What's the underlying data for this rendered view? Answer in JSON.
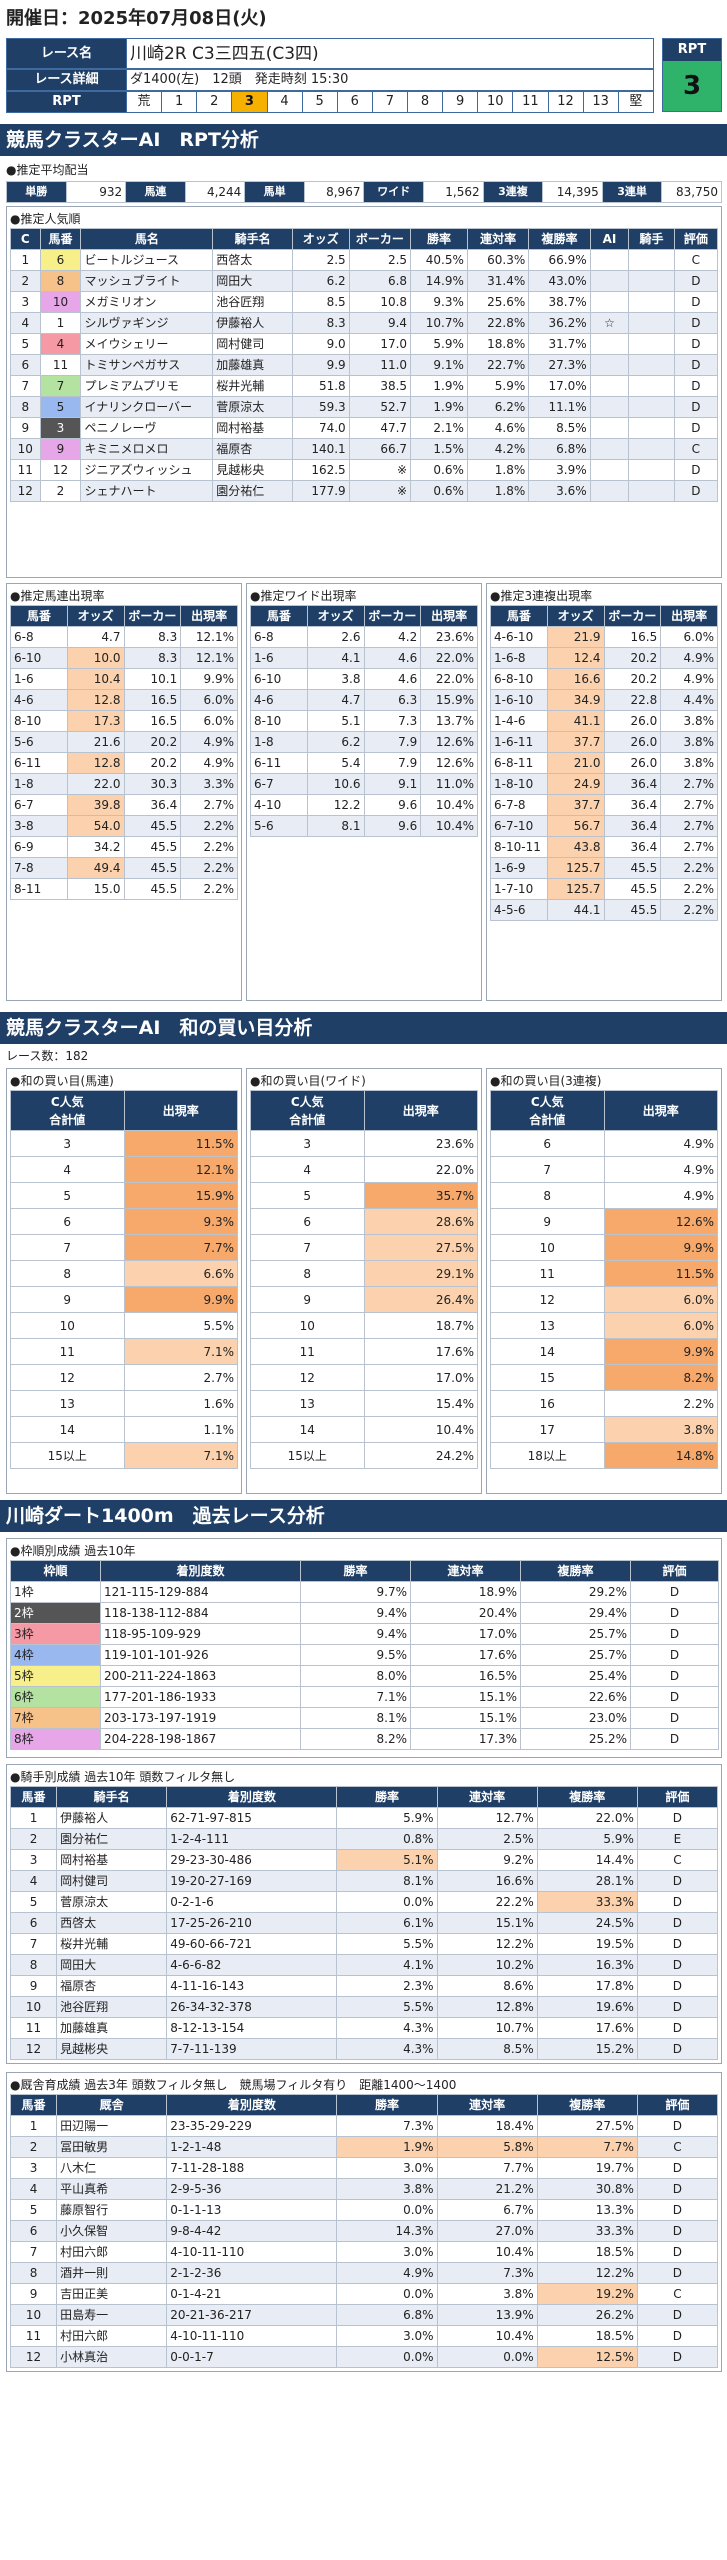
{
  "header": {
    "date_label": "開催日：2025年07月08日(火)"
  },
  "race": {
    "name_label": "レース名",
    "name": "川崎2R C3三四五(C3四)",
    "detail_label": "レース詳細",
    "detail": "ダ1400(左)　12頭　発走時刻 15:30",
    "rpt_label": "RPT",
    "rpt_scale_left": "荒",
    "rpt_scale_right": "堅",
    "rpt_values": [
      "1",
      "2",
      "3",
      "4",
      "5",
      "6",
      "7",
      "8",
      "9",
      "10",
      "11",
      "12",
      "13"
    ],
    "rpt_selected": "3",
    "rpt_badge_label": "RPT",
    "rpt_badge_value": "3"
  },
  "s1": {
    "title": "競馬クラスターAI　RPT分析",
    "avg_title": "●推定平均配当",
    "avg": [
      {
        "l": "単勝",
        "v": "932"
      },
      {
        "l": "馬連",
        "v": "4,244"
      },
      {
        "l": "馬単",
        "v": "8,967"
      },
      {
        "l": "ワイド",
        "v": "1,562"
      },
      {
        "l": "3連複",
        "v": "14,395"
      },
      {
        "l": "3連単",
        "v": "83,750"
      }
    ],
    "pop_title": "●推定人気順",
    "pop_headers": [
      "C",
      "馬番",
      "馬名",
      "騎手名",
      "オッズ",
      "ボーカー",
      "勝率",
      "連対率",
      "複勝率",
      "AI",
      "騎手",
      "評価"
    ],
    "pop_rows": [
      [
        "1",
        "6",
        "ビートルジュース",
        "西啓太",
        "2.5",
        "2.5",
        "40.5%",
        "60.3%",
        "66.9%",
        "",
        "",
        "C"
      ],
      [
        "2",
        "8",
        "マッシュブライト",
        "岡田大",
        "6.2",
        "6.8",
        "14.9%",
        "31.4%",
        "43.0%",
        "",
        "",
        "D"
      ],
      [
        "3",
        "10",
        "メガミリオン",
        "池谷匠翔",
        "8.5",
        "10.8",
        "9.3%",
        "25.6%",
        "38.7%",
        "",
        "",
        "D"
      ],
      [
        "4",
        "1",
        "シルヴァギンジ",
        "伊藤裕人",
        "8.3",
        "9.4",
        "10.7%",
        "22.8%",
        "36.2%",
        "☆",
        "",
        "D"
      ],
      [
        "5",
        "4",
        "メイウシェリー",
        "岡村健司",
        "9.0",
        "17.0",
        "5.9%",
        "18.8%",
        "31.7%",
        "",
        "",
        "D"
      ],
      [
        "6",
        "11",
        "トミサンペガサス",
        "加藤雄真",
        "9.9",
        "11.0",
        "9.1%",
        "22.7%",
        "27.3%",
        "",
        "",
        "D"
      ],
      [
        "7",
        "7",
        "プレミアムプリモ",
        "桜井光輔",
        "51.8",
        "38.5",
        "1.9%",
        "5.9%",
        "17.0%",
        "",
        "",
        "D"
      ],
      [
        "8",
        "5",
        "イナリンクローバー",
        "菅原涼太",
        "59.3",
        "52.7",
        "1.9%",
        "6.2%",
        "11.1%",
        "",
        "",
        "D"
      ],
      [
        "9",
        "3",
        "ペニノレーヴ",
        "岡村裕基",
        "74.0",
        "47.7",
        "2.1%",
        "4.6%",
        "8.5%",
        "",
        "",
        "D"
      ],
      [
        "10",
        "9",
        "キミニメロメロ",
        "福原杏",
        "140.1",
        "66.7",
        "1.5%",
        "4.2%",
        "6.8%",
        "",
        "",
        "C"
      ],
      [
        "11",
        "12",
        "ジニアズウィッシュ",
        "見越彬央",
        "162.5",
        "※",
        "0.6%",
        "1.8%",
        "3.9%",
        "",
        "",
        "D"
      ],
      [
        "12",
        "2",
        "シェナハート",
        "園分祐仁",
        "177.9",
        "※",
        "0.6%",
        "1.8%",
        "3.6%",
        "",
        "",
        "D"
      ]
    ],
    "umaren_title": "●推定馬連出現率",
    "umaren_headers": [
      "馬番",
      "オッズ",
      "ボーカー",
      "出現率"
    ],
    "umaren_rows": [
      [
        "6-8",
        "4.7",
        "8.3",
        "12.1%"
      ],
      [
        "6-10",
        "10.0",
        "8.3",
        "12.1%"
      ],
      [
        "1-6",
        "10.4",
        "10.1",
        "9.9%"
      ],
      [
        "4-6",
        "12.8",
        "16.5",
        "6.0%"
      ],
      [
        "8-10",
        "17.3",
        "16.5",
        "6.0%"
      ],
      [
        "5-6",
        "21.6",
        "20.2",
        "4.9%"
      ],
      [
        "6-11",
        "12.8",
        "20.2",
        "4.9%"
      ],
      [
        "1-8",
        "22.0",
        "30.3",
        "3.3%"
      ],
      [
        "6-7",
        "39.8",
        "36.4",
        "2.7%"
      ],
      [
        "3-8",
        "54.0",
        "45.5",
        "2.2%"
      ],
      [
        "6-9",
        "34.2",
        "45.5",
        "2.2%"
      ],
      [
        "7-8",
        "49.4",
        "45.5",
        "2.2%"
      ],
      [
        "8-11",
        "15.0",
        "45.5",
        "2.2%"
      ]
    ],
    "wide_title": "●推定ワイド出現率",
    "wide_headers": [
      "馬番",
      "オッズ",
      "ボーカー",
      "出現率"
    ],
    "wide_rows": [
      [
        "6-8",
        "2.6",
        "4.2",
        "23.6%"
      ],
      [
        "1-6",
        "4.1",
        "4.6",
        "22.0%"
      ],
      [
        "6-10",
        "3.8",
        "4.6",
        "22.0%"
      ],
      [
        "4-6",
        "4.7",
        "6.3",
        "15.9%"
      ],
      [
        "8-10",
        "5.1",
        "7.3",
        "13.7%"
      ],
      [
        "1-8",
        "6.2",
        "7.9",
        "12.6%"
      ],
      [
        "6-11",
        "5.4",
        "7.9",
        "12.6%"
      ],
      [
        "6-7",
        "10.6",
        "9.1",
        "11.0%"
      ],
      [
        "4-10",
        "12.2",
        "9.6",
        "10.4%"
      ],
      [
        "5-6",
        "8.1",
        "9.6",
        "10.4%"
      ]
    ],
    "trio_title": "●推定3連複出現率",
    "trio_headers": [
      "馬番",
      "オッズ",
      "ボーカー",
      "出現率"
    ],
    "trio_rows": [
      [
        "4-6-10",
        "21.9",
        "16.5",
        "6.0%"
      ],
      [
        "1-6-8",
        "12.4",
        "20.2",
        "4.9%"
      ],
      [
        "6-8-10",
        "16.6",
        "20.2",
        "4.9%"
      ],
      [
        "1-6-10",
        "34.9",
        "22.8",
        "4.4%"
      ],
      [
        "1-4-6",
        "41.1",
        "26.0",
        "3.8%"
      ],
      [
        "1-6-11",
        "37.7",
        "26.0",
        "3.8%"
      ],
      [
        "6-8-11",
        "21.0",
        "26.0",
        "3.8%"
      ],
      [
        "1-8-10",
        "24.9",
        "36.4",
        "2.7%"
      ],
      [
        "6-7-8",
        "37.7",
        "36.4",
        "2.7%"
      ],
      [
        "6-7-10",
        "56.7",
        "36.4",
        "2.7%"
      ],
      [
        "8-10-11",
        "43.8",
        "36.4",
        "2.7%"
      ],
      [
        "1-6-9",
        "125.7",
        "45.5",
        "2.2%"
      ],
      [
        "1-7-10",
        "125.7",
        "45.5",
        "2.2%"
      ],
      [
        "4-5-6",
        "44.1",
        "45.5",
        "2.2%"
      ]
    ]
  },
  "s2": {
    "title": "競馬クラスターAI　和の買い目分析",
    "race_count": "レース数：182",
    "p1_title": "●和の買い目(馬連)",
    "p2_title": "●和の買い目(ワイド)",
    "p3_title": "●和の買い目(3連複)",
    "col1": "C人気",
    "col1b": "合計値",
    "col2": "出現率",
    "umaren": [
      [
        "3",
        "11.5%"
      ],
      [
        "4",
        "12.1%"
      ],
      [
        "5",
        "15.9%"
      ],
      [
        "6",
        "9.3%"
      ],
      [
        "7",
        "7.7%"
      ],
      [
        "8",
        "6.6%"
      ],
      [
        "9",
        "9.9%"
      ],
      [
        "10",
        "5.5%"
      ],
      [
        "11",
        "7.1%"
      ],
      [
        "12",
        "2.7%"
      ],
      [
        "13",
        "1.6%"
      ],
      [
        "14",
        "1.1%"
      ],
      [
        "15以上",
        "7.1%"
      ]
    ],
    "wide": [
      [
        "3",
        "23.6%"
      ],
      [
        "4",
        "22.0%"
      ],
      [
        "5",
        "35.7%"
      ],
      [
        "6",
        "28.6%"
      ],
      [
        "7",
        "27.5%"
      ],
      [
        "8",
        "29.1%"
      ],
      [
        "9",
        "26.4%"
      ],
      [
        "10",
        "18.7%"
      ],
      [
        "11",
        "17.6%"
      ],
      [
        "12",
        "17.0%"
      ],
      [
        "13",
        "15.4%"
      ],
      [
        "14",
        "10.4%"
      ],
      [
        "15以上",
        "24.2%"
      ]
    ],
    "trio": [
      [
        "6",
        "4.9%"
      ],
      [
        "7",
        "4.9%"
      ],
      [
        "8",
        "4.9%"
      ],
      [
        "9",
        "12.6%"
      ],
      [
        "10",
        "9.9%"
      ],
      [
        "11",
        "11.5%"
      ],
      [
        "12",
        "6.0%"
      ],
      [
        "13",
        "6.0%"
      ],
      [
        "14",
        "9.9%"
      ],
      [
        "15",
        "8.2%"
      ],
      [
        "16",
        "2.2%"
      ],
      [
        "17",
        "3.8%"
      ],
      [
        "18以上",
        "14.8%"
      ]
    ]
  },
  "s3": {
    "title": "川崎ダート1400m　過去レース分析",
    "waku_title": "●枠順別成績 過去10年",
    "waku_headers": [
      "枠順",
      "着別度数",
      "勝率",
      "連対率",
      "複勝率",
      "評価"
    ],
    "waku_rows": [
      [
        "1枠",
        "121-115-129-884",
        "9.7%",
        "18.9%",
        "29.2%",
        "D"
      ],
      [
        "2枠",
        "118-138-112-884",
        "9.4%",
        "20.4%",
        "29.4%",
        "D"
      ],
      [
        "3枠",
        "118-95-109-929",
        "9.4%",
        "17.0%",
        "25.7%",
        "D"
      ],
      [
        "4枠",
        "119-101-101-926",
        "9.5%",
        "17.6%",
        "25.7%",
        "D"
      ],
      [
        "5枠",
        "200-211-224-1863",
        "8.0%",
        "16.5%",
        "25.4%",
        "D"
      ],
      [
        "6枠",
        "177-201-186-1933",
        "7.1%",
        "15.1%",
        "22.6%",
        "D"
      ],
      [
        "7枠",
        "203-173-197-1919",
        "8.1%",
        "15.1%",
        "23.0%",
        "D"
      ],
      [
        "8枠",
        "204-228-198-1867",
        "8.2%",
        "17.3%",
        "25.2%",
        "D"
      ]
    ],
    "jockey_title": "●騎手別成績 過去10年 頭数フィルタ無し",
    "jockey_headers": [
      "馬番",
      "騎手名",
      "着別度数",
      "勝率",
      "連対率",
      "複勝率",
      "評価"
    ],
    "jockey_rows": [
      [
        "1",
        "伊藤裕人",
        "62-71-97-815",
        "5.9%",
        "12.7%",
        "22.0%",
        "D"
      ],
      [
        "2",
        "園分祐仁",
        "1-2-4-111",
        "0.8%",
        "2.5%",
        "5.9%",
        "E"
      ],
      [
        "3",
        "岡村裕基",
        "29-23-30-486",
        "5.1%",
        "9.2%",
        "14.4%",
        "C"
      ],
      [
        "4",
        "岡村健司",
        "19-20-27-169",
        "8.1%",
        "16.6%",
        "28.1%",
        "D"
      ],
      [
        "5",
        "菅原涼太",
        "0-2-1-6",
        "0.0%",
        "22.2%",
        "33.3%",
        "D"
      ],
      [
        "6",
        "西啓太",
        "17-25-26-210",
        "6.1%",
        "15.1%",
        "24.5%",
        "D"
      ],
      [
        "7",
        "桜井光輔",
        "49-60-66-721",
        "5.5%",
        "12.2%",
        "19.5%",
        "D"
      ],
      [
        "8",
        "岡田大",
        "4-6-6-82",
        "4.1%",
        "10.2%",
        "16.3%",
        "D"
      ],
      [
        "9",
        "福原杏",
        "4-11-16-143",
        "2.3%",
        "8.6%",
        "17.8%",
        "D"
      ],
      [
        "10",
        "池谷匠翔",
        "26-34-32-378",
        "5.5%",
        "12.8%",
        "19.6%",
        "D"
      ],
      [
        "11",
        "加藤雄真",
        "8-12-13-154",
        "4.3%",
        "10.7%",
        "17.6%",
        "D"
      ],
      [
        "12",
        "見越彬央",
        "7-7-11-139",
        "4.3%",
        "8.5%",
        "15.2%",
        "D"
      ]
    ],
    "trainer_title": "●厩舎育成績 過去3年 頭数フィルタ無し　競馬場フィルタ有り　距離1400～1400",
    "trainer_headers": [
      "馬番",
      "厩舎",
      "着別度数",
      "勝率",
      "連対率",
      "複勝率",
      "評価"
    ],
    "trainer_rows": [
      [
        "1",
        "田辺陽一",
        "23-35-29-229",
        "7.3%",
        "18.4%",
        "27.5%",
        "D"
      ],
      [
        "2",
        "冨田敏男",
        "1-2-1-48",
        "1.9%",
        "5.8%",
        "7.7%",
        "C"
      ],
      [
        "3",
        "八木仁",
        "7-11-28-188",
        "3.0%",
        "7.7%",
        "19.7%",
        "D"
      ],
      [
        "4",
        "平山真希",
        "2-9-5-36",
        "3.8%",
        "21.2%",
        "30.8%",
        "D"
      ],
      [
        "5",
        "藤原智行",
        "0-1-1-13",
        "0.0%",
        "6.7%",
        "13.3%",
        "D"
      ],
      [
        "6",
        "小久保智",
        "9-8-4-42",
        "14.3%",
        "27.0%",
        "33.3%",
        "D"
      ],
      [
        "7",
        "村田六郎",
        "4-10-11-110",
        "3.0%",
        "10.4%",
        "18.5%",
        "D"
      ],
      [
        "8",
        "酒井一則",
        "2-1-2-36",
        "4.9%",
        "7.3%",
        "12.2%",
        "D"
      ],
      [
        "9",
        "吉田正美",
        "0-1-4-21",
        "0.0%",
        "3.8%",
        "19.2%",
        "C"
      ],
      [
        "10",
        "田島寿一",
        "20-21-36-217",
        "6.8%",
        "13.9%",
        "26.2%",
        "D"
      ],
      [
        "11",
        "村田六郎",
        "4-10-11-110",
        "3.0%",
        "10.4%",
        "18.5%",
        "D"
      ],
      [
        "12",
        "小林真治",
        "0-0-1-7",
        "0.0%",
        "0.0%",
        "12.5%",
        "D"
      ]
    ]
  },
  "colors": {
    "navy": "#1f3f66",
    "waku": [
      "#ffffff",
      "#555555",
      "#f59aa5",
      "#9ab8f0",
      "#f7f08a",
      "#b4e2a0",
      "#f7c28a",
      "#e7a6e8"
    ]
  }
}
